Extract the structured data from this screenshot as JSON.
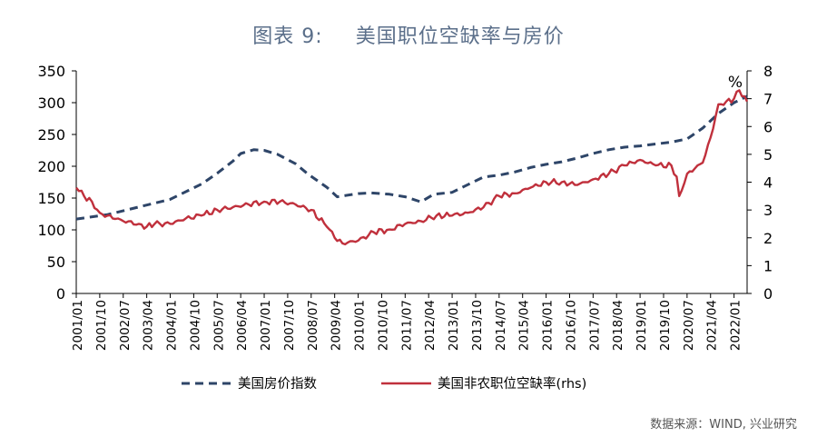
{
  "title": {
    "label": "图表 9:",
    "text": "美国职位空缺率与房价"
  },
  "source": "数据来源：WIND, 兴业研究",
  "colors": {
    "house_price": "#2e4568",
    "vacancy": "#c0303c",
    "title": "#5b6f8a"
  },
  "chart_data": {
    "type": "line",
    "title": "美国职位空缺率与房价",
    "xlabel": "",
    "ylabel": "",
    "y2_unit_label": "%",
    "ylim": [
      0,
      350
    ],
    "y2lim": [
      0,
      8
    ],
    "yticks": [
      "0",
      "50",
      "100",
      "150",
      "200",
      "250",
      "300",
      "350"
    ],
    "y2ticks": [
      "0",
      "1",
      "2",
      "3",
      "4",
      "5",
      "6",
      "7",
      "8"
    ],
    "xticks": [
      "2001/01",
      "2001/10",
      "2002/07",
      "2003/04",
      "2004/01",
      "2004/10",
      "2005/07",
      "2006/04",
      "2007/01",
      "2007/10",
      "2008/07",
      "2009/04",
      "2010/01",
      "2010/10",
      "2011/07",
      "2012/04",
      "2013/01",
      "2013/10",
      "2014/07",
      "2015/04",
      "2016/01",
      "2016/10",
      "2017/07",
      "2018/04",
      "2019/01",
      "2019/10",
      "2020/07",
      "2021/04",
      "2022/01"
    ],
    "x_range": [
      "2001-01",
      "2022-06"
    ],
    "legend_position": "bottom",
    "series": [
      {
        "name": "美国房价指数",
        "axis": "left",
        "style": "dashed",
        "points": [
          [
            "2001-01",
            117
          ],
          [
            "2002-01",
            124
          ],
          [
            "2003-01",
            136
          ],
          [
            "2004-01",
            148
          ],
          [
            "2005-01",
            172
          ],
          [
            "2005-07",
            189
          ],
          [
            "2006-01",
            208
          ],
          [
            "2006-04",
            220
          ],
          [
            "2006-09",
            226
          ],
          [
            "2007-01",
            225
          ],
          [
            "2007-06",
            219
          ],
          [
            "2008-01",
            204
          ],
          [
            "2008-06",
            187
          ],
          [
            "2009-01",
            167
          ],
          [
            "2009-05",
            152
          ],
          [
            "2010-01",
            157
          ],
          [
            "2010-06",
            158
          ],
          [
            "2011-01",
            156
          ],
          [
            "2011-07",
            152
          ],
          [
            "2012-01",
            144
          ],
          [
            "2012-06",
            156
          ],
          [
            "2013-01",
            159
          ],
          [
            "2013-06",
            169
          ],
          [
            "2014-01",
            183
          ],
          [
            "2014-07",
            186
          ],
          [
            "2015-01",
            191
          ],
          [
            "2015-07",
            198
          ],
          [
            "2016-01",
            203
          ],
          [
            "2016-07",
            207
          ],
          [
            "2017-01",
            213
          ],
          [
            "2017-07",
            220
          ],
          [
            "2018-01",
            226
          ],
          [
            "2018-07",
            230
          ],
          [
            "2019-01",
            232
          ],
          [
            "2019-07",
            235
          ],
          [
            "2020-01",
            238
          ],
          [
            "2020-07",
            243
          ],
          [
            "2021-01",
            260
          ],
          [
            "2021-07",
            283
          ],
          [
            "2022-01",
            300
          ],
          [
            "2022-06",
            310
          ]
        ]
      },
      {
        "name": "美国非农职位空缺率(rhs)",
        "axis": "right",
        "style": "solid",
        "points": [
          [
            "2001-01",
            3.8
          ],
          [
            "2001-04",
            3.5
          ],
          [
            "2001-07",
            3.3
          ],
          [
            "2001-10",
            2.9
          ],
          [
            "2002-01",
            2.8
          ],
          [
            "2002-07",
            2.6
          ],
          [
            "2003-01",
            2.5
          ],
          [
            "2003-04",
            2.4
          ],
          [
            "2003-07",
            2.5
          ],
          [
            "2004-01",
            2.5
          ],
          [
            "2004-07",
            2.7
          ],
          [
            "2005-01",
            2.8
          ],
          [
            "2005-07",
            3.0
          ],
          [
            "2006-01",
            3.1
          ],
          [
            "2006-07",
            3.2
          ],
          [
            "2007-01",
            3.3
          ],
          [
            "2007-07",
            3.3
          ],
          [
            "2008-01",
            3.2
          ],
          [
            "2008-07",
            3.0
          ],
          [
            "2009-01",
            2.4
          ],
          [
            "2009-04",
            2.0
          ],
          [
            "2009-07",
            1.8
          ],
          [
            "2010-01",
            1.9
          ],
          [
            "2010-07",
            2.2
          ],
          [
            "2011-01",
            2.3
          ],
          [
            "2011-07",
            2.5
          ],
          [
            "2012-01",
            2.6
          ],
          [
            "2012-07",
            2.8
          ],
          [
            "2013-01",
            2.8
          ],
          [
            "2013-07",
            2.9
          ],
          [
            "2014-01",
            3.1
          ],
          [
            "2014-07",
            3.5
          ],
          [
            "2015-01",
            3.6
          ],
          [
            "2015-07",
            3.8
          ],
          [
            "2016-01",
            4.0
          ],
          [
            "2016-07",
            4.0
          ],
          [
            "2017-01",
            3.9
          ],
          [
            "2017-07",
            4.1
          ],
          [
            "2018-01",
            4.3
          ],
          [
            "2018-07",
            4.6
          ],
          [
            "2019-01",
            4.8
          ],
          [
            "2019-07",
            4.6
          ],
          [
            "2020-01",
            4.6
          ],
          [
            "2020-03",
            4.2
          ],
          [
            "2020-04",
            3.5
          ],
          [
            "2020-07",
            4.3
          ],
          [
            "2021-01",
            4.7
          ],
          [
            "2021-04",
            5.6
          ],
          [
            "2021-07",
            6.8
          ],
          [
            "2021-10",
            6.9
          ],
          [
            "2022-01",
            7.0
          ],
          [
            "2022-03",
            7.3
          ],
          [
            "2022-06",
            6.9
          ]
        ]
      }
    ]
  }
}
